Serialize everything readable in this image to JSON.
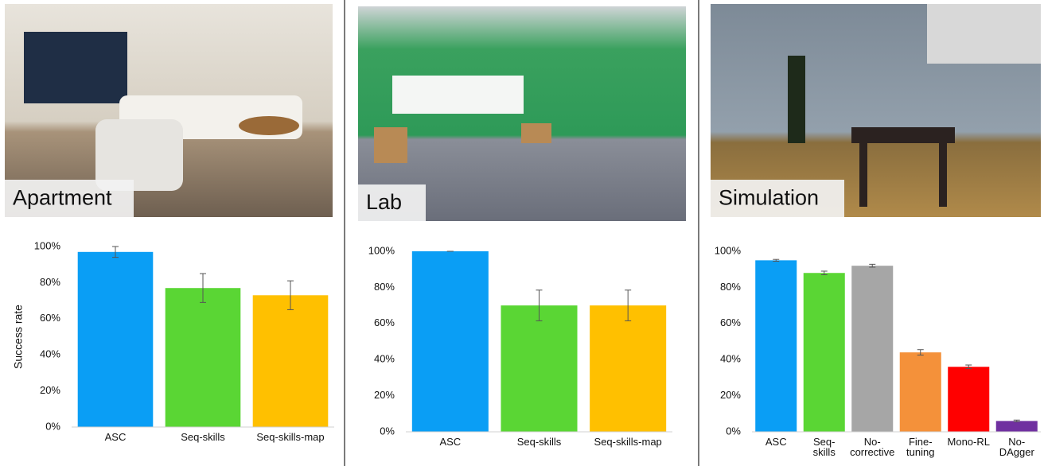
{
  "chart_data": [
    {
      "type": "bar",
      "image_label": "Apartment",
      "y_label": "Success rate",
      "categories": [
        [
          "ASC"
        ],
        [
          "Seq-skills"
        ],
        [
          "Seq-skills-map"
        ]
      ],
      "values": [
        97,
        77,
        73
      ],
      "errors": [
        3,
        8,
        8
      ],
      "colors": [
        "#0a9ef5",
        "#5ad634",
        "#ffc000"
      ],
      "ylim": [
        0,
        100
      ],
      "yticks": [
        {
          "value": 0,
          "label": "0%"
        },
        {
          "value": 20,
          "label": "20%"
        },
        {
          "value": 40,
          "label": "40%"
        },
        {
          "value": 60,
          "label": "60%"
        },
        {
          "value": 80,
          "label": "80%"
        },
        {
          "value": 100,
          "label": "100%"
        }
      ]
    },
    {
      "type": "bar",
      "image_label": "Lab",
      "categories": [
        [
          "ASC"
        ],
        [
          "Seq-skills"
        ],
        [
          "Seq-skills-map"
        ]
      ],
      "values": [
        100,
        70,
        70
      ],
      "errors": [
        0,
        8.5,
        8.5
      ],
      "colors": [
        "#0a9ef5",
        "#5ad634",
        "#ffc000"
      ],
      "ylim": [
        0,
        100
      ],
      "yticks": [
        {
          "value": 0,
          "label": "0%"
        },
        {
          "value": 20,
          "label": "20%"
        },
        {
          "value": 40,
          "label": "40%"
        },
        {
          "value": 60,
          "label": "60%"
        },
        {
          "value": 80,
          "label": "80%"
        },
        {
          "value": 100,
          "label": "100%"
        }
      ]
    },
    {
      "type": "bar",
      "image_label": "Simulation",
      "categories": [
        [
          "ASC"
        ],
        [
          "Seq-",
          "skills"
        ],
        [
          "No-",
          "corrective"
        ],
        [
          "Fine-",
          "tuning"
        ],
        [
          "Mono-RL"
        ],
        [
          "No-",
          "DAgger"
        ]
      ],
      "values": [
        95,
        88,
        92,
        44,
        36,
        6
      ],
      "errors": [
        0.5,
        1,
        0.8,
        1.5,
        1,
        0.5
      ],
      "colors": [
        "#0a9ef5",
        "#5ad634",
        "#a6a6a6",
        "#f4913a",
        "#ff0000",
        "#7030a0"
      ],
      "ylim": [
        0,
        100
      ],
      "yticks": [
        {
          "value": 0,
          "label": "0%"
        },
        {
          "value": 20,
          "label": "20%"
        },
        {
          "value": 40,
          "label": "40%"
        },
        {
          "value": 60,
          "label": "60%"
        },
        {
          "value": 80,
          "label": "80%"
        },
        {
          "value": 100,
          "label": "100%"
        }
      ]
    }
  ]
}
